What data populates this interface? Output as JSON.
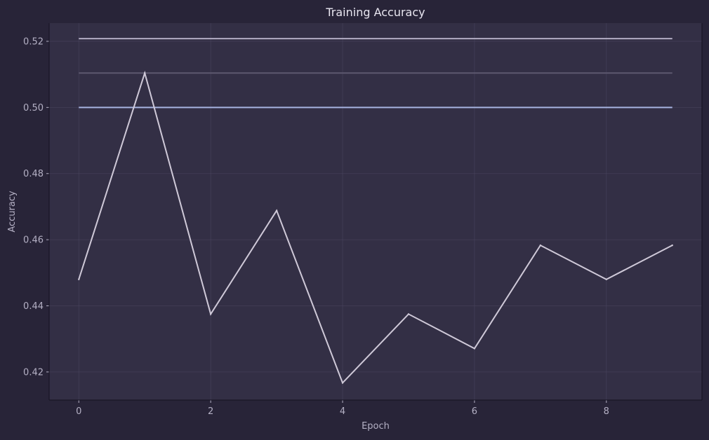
{
  "colors": {
    "page_bg": "#282438",
    "plot_bg": "#332f45",
    "grid": "#4a4660",
    "axis_text": "#b4b0c4",
    "title_text": "#e8e6f0",
    "main_line": "#cfc9d8",
    "ref_line_top": "#b3adc3",
    "ref_line_mid": "#5d586f",
    "ref_line_base": "#a7b3e0"
  },
  "chart_data": {
    "type": "line",
    "title": "Training Accuracy",
    "xlabel": "Epoch",
    "ylabel": "Accuracy",
    "xlim": [
      -0.45,
      9.45
    ],
    "ylim": [
      0.4115,
      0.5255
    ],
    "grid": true,
    "x_ticks": [
      0,
      2,
      4,
      6,
      8
    ],
    "x_tick_labels": [
      "0",
      "2",
      "4",
      "6",
      "8"
    ],
    "y_ticks": [
      0.42,
      0.44,
      0.46,
      0.48,
      0.5,
      0.52
    ],
    "y_tick_labels": [
      "0.42",
      "0.44",
      "0.46",
      "0.48",
      "0.50",
      "0.52"
    ],
    "x": [
      0,
      1,
      2,
      3,
      4,
      5,
      6,
      7,
      8,
      9
    ],
    "series": [
      {
        "values": [
          0.448,
          0.5104,
          0.4375,
          0.4688,
          0.4167,
          0.4375,
          0.4271,
          0.4583,
          0.448,
          0.4583
        ]
      }
    ],
    "reference_lines": [
      {
        "y": 0.5208,
        "x_start": 0,
        "x_end": 9
      },
      {
        "y": 0.5104,
        "x_start": 0,
        "x_end": 9
      },
      {
        "y": 0.5,
        "x_start": 0,
        "x_end": 9
      }
    ]
  }
}
